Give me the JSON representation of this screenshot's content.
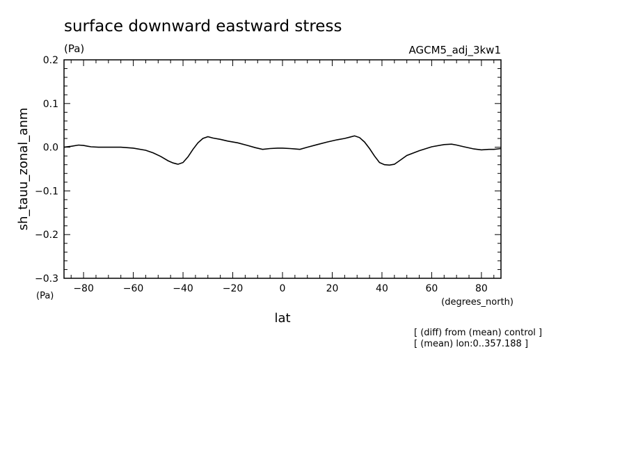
{
  "chart_data": {
    "type": "line",
    "title": "surface downward eastward stress",
    "title_units": "(Pa)",
    "dataset": "AGCM5_adj_3kw1",
    "xlabel": "lat",
    "x_units": "(degrees_north)",
    "ylabel": "sh_tauu_zonal_anm",
    "y_units": "(Pa)",
    "xlim": [
      -87.86,
      87.86
    ],
    "ylim": [
      -0.3,
      0.2
    ],
    "x_ticks": [
      -80,
      -60,
      -40,
      -20,
      0,
      20,
      40,
      60,
      80
    ],
    "x_tick_labels": [
      "−80",
      "−60",
      "−40",
      "−20",
      "0",
      "20",
      "40",
      "60",
      "80"
    ],
    "y_ticks": [
      0.2,
      0.1,
      0.0,
      -0.1,
      -0.2,
      -0.3
    ],
    "y_tick_labels": [
      "0.2",
      "0.1",
      "0.0",
      "−0.1",
      "−0.2",
      "−0.3"
    ],
    "grid": false,
    "notes": [
      "[ (diff) from (mean) control ]",
      "[ (mean) lon:0..357.188 ]"
    ],
    "series": [
      {
        "x": [
          -87.9,
          -85,
          -82,
          -80,
          -77,
          -74,
          -70,
          -65,
          -60,
          -55,
          -52,
          -49,
          -46,
          -44,
          -42,
          -40,
          -38,
          -36,
          -34,
          -32,
          -30,
          -28,
          -25,
          -22,
          -18,
          -14,
          -11,
          -8,
          -5,
          -2,
          0,
          3,
          5,
          7,
          10,
          14,
          18,
          22,
          25,
          27,
          29,
          31,
          33,
          35,
          37,
          39,
          41,
          43,
          45,
          47,
          50,
          55,
          60,
          65,
          68,
          70,
          73,
          77,
          80,
          83,
          85,
          87.9
        ],
        "y": [
          0.0,
          0.002,
          0.005,
          0.004,
          0.001,
          0.0,
          0.0,
          0.0,
          -0.002,
          -0.007,
          -0.013,
          -0.021,
          -0.031,
          -0.036,
          -0.039,
          -0.035,
          -0.022,
          -0.005,
          0.01,
          0.02,
          0.024,
          0.021,
          0.018,
          0.014,
          0.01,
          0.004,
          -0.001,
          -0.005,
          -0.003,
          -0.002,
          -0.002,
          -0.003,
          -0.004,
          -0.005,
          0.0,
          0.006,
          0.012,
          0.017,
          0.02,
          0.023,
          0.026,
          0.022,
          0.012,
          -0.003,
          -0.02,
          -0.035,
          -0.04,
          -0.041,
          -0.039,
          -0.031,
          -0.019,
          -0.008,
          0.001,
          0.006,
          0.007,
          0.005,
          0.001,
          -0.004,
          -0.006,
          -0.005,
          -0.005,
          -0.003
        ]
      }
    ]
  }
}
